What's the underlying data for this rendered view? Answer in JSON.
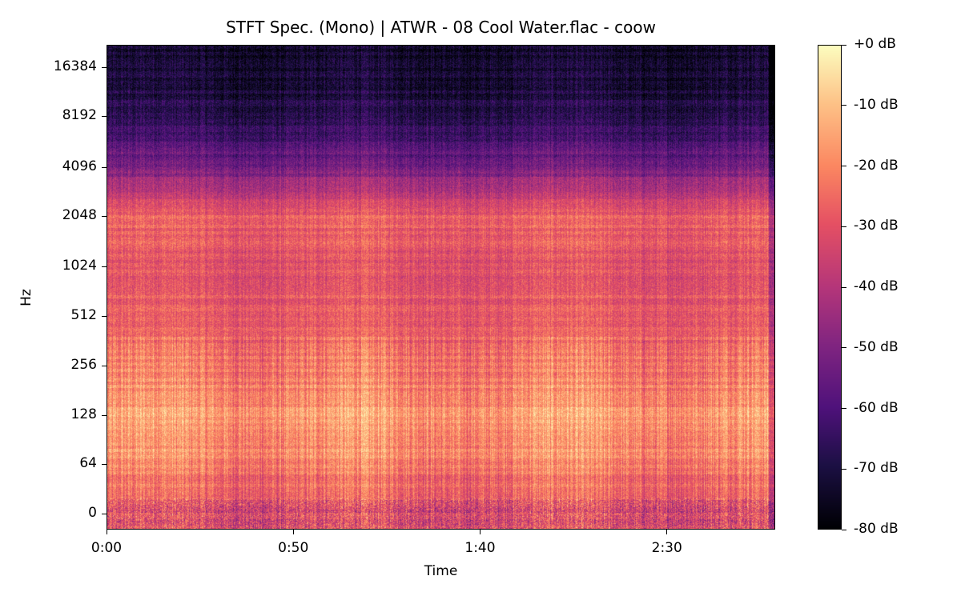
{
  "chart_data": {
    "type": "heatmap",
    "title": "STFT Spec. (Mono) | ATWR - 08 Cool Water.flac - coow",
    "xlabel": "Time",
    "ylabel": "Hz",
    "x_ticks": [
      "0:00",
      "0:50",
      "1:40",
      "2:30"
    ],
    "x_tick_seconds": [
      0,
      50,
      100,
      150
    ],
    "xlim_seconds": [
      0,
      179
    ],
    "y_scale": "log2 (symlog)",
    "y_ticks": [
      "0",
      "64",
      "128",
      "256",
      "512",
      "1024",
      "2048",
      "4096",
      "8192",
      "16384"
    ],
    "colorbar": {
      "colormap": "magma",
      "range_db": [
        -80,
        0
      ],
      "tick_labels": [
        "+0 dB",
        "-10 dB",
        "-20 dB",
        "-30 dB",
        "-40 dB",
        "-50 dB",
        "-60 dB",
        "-70 dB",
        "-80 dB"
      ]
    },
    "approx_mean_level_db_by_frequency": [
      {
        "hz": 0,
        "db": -32
      },
      {
        "hz": 64,
        "db": -20
      },
      {
        "hz": 128,
        "db": -17
      },
      {
        "hz": 256,
        "db": -22
      },
      {
        "hz": 512,
        "db": -28
      },
      {
        "hz": 1024,
        "db": -30
      },
      {
        "hz": 2048,
        "db": -27
      },
      {
        "hz": 4096,
        "db": -52
      },
      {
        "hz": 8192,
        "db": -68
      },
      {
        "hz": 16384,
        "db": -73
      }
    ]
  }
}
